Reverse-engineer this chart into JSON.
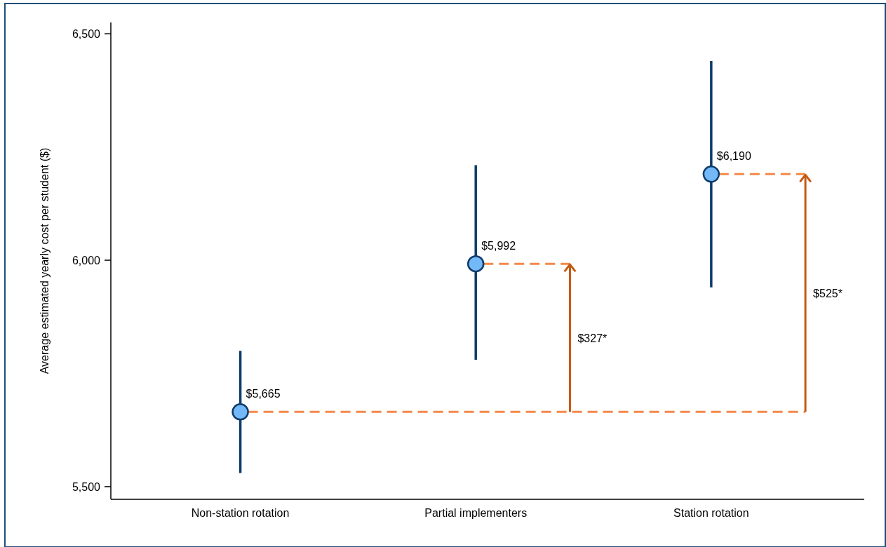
{
  "chart_data": {
    "type": "scatter",
    "ylabel": "Average estimated yearly cost per student ($)",
    "categories": [
      "Non-station rotation",
      "Partial implementers",
      "Station rotation"
    ],
    "values": [
      5665,
      5992,
      6190
    ],
    "color": "#74b9f7",
    "errors": [
      [
        5530,
        5800
      ],
      [
        5780,
        6210
      ],
      [
        5940,
        6440
      ]
    ],
    "value_labels": [
      "$5,665",
      "$5,992",
      "$6,190"
    ],
    "ylim": [
      5472,
      6525
    ],
    "yticks": [
      {
        "value": 5500,
        "label": "5,500"
      },
      {
        "value": 6000,
        "label": "6,000"
      },
      {
        "value": 6500,
        "label": "6,500"
      }
    ],
    "marker": "circle",
    "ref_lines": [
      {
        "axis": "y",
        "value": 5665,
        "color": "#f4894a",
        "line_style": "dashed"
      },
      {
        "axis": "y",
        "value": 5992,
        "color": "#f4894a",
        "line_style": "dashed"
      },
      {
        "axis": "y",
        "value": 6190,
        "color": "#f4894a",
        "line_style": "dashed"
      }
    ],
    "annotations": [
      "$327*",
      "$525*"
    ]
  }
}
